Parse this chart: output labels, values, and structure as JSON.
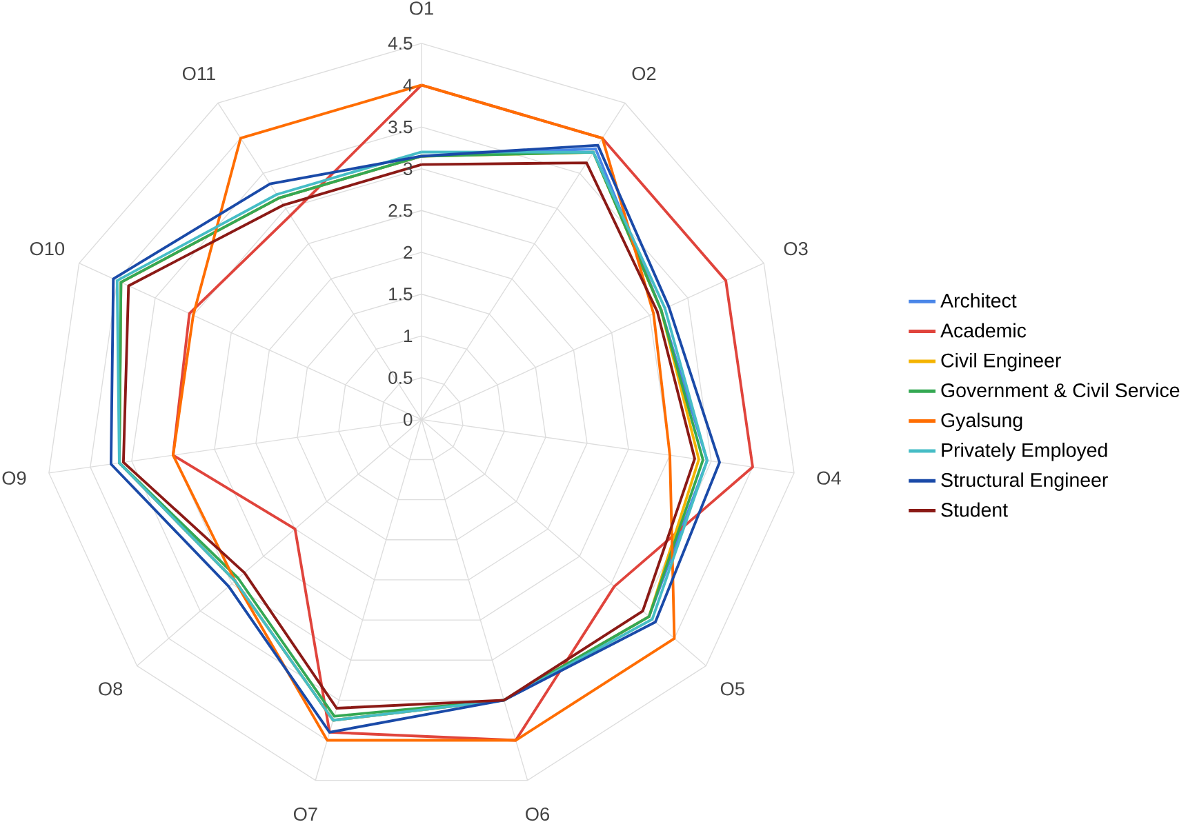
{
  "chart_data": {
    "type": "radar",
    "categories": [
      "O1",
      "O2",
      "O3",
      "O4",
      "O5",
      "O6",
      "O7",
      "O8",
      "O9",
      "O10",
      "O11"
    ],
    "ylim": [
      0,
      4.5
    ],
    "yticks": [
      0,
      0.5,
      1,
      1.5,
      2,
      2.5,
      3,
      3.5,
      4,
      4.5
    ],
    "grid": true,
    "legend": "right",
    "series": [
      {
        "name": "Architect",
        "color": "#4a86e8",
        "values": [
          3.15,
          3.85,
          3.15,
          3.45,
          3.6,
          3.5,
          3.75,
          2.95,
          3.65,
          3.95,
          3.15
        ]
      },
      {
        "name": "Academic",
        "color": "#e0443c",
        "values": [
          4.0,
          4.0,
          4.0,
          4.0,
          3.05,
          4.0,
          3.9,
          2.0,
          3.0,
          3.05,
          2.9
        ]
      },
      {
        "name": "Civil Engineer",
        "color": "#f4b400",
        "values": [
          3.15,
          3.8,
          3.15,
          3.35,
          3.6,
          3.5,
          3.75,
          2.95,
          3.65,
          3.95,
          3.15
        ]
      },
      {
        "name": "Government & Civil Service",
        "color": "#34a853",
        "values": [
          3.15,
          3.8,
          3.15,
          3.4,
          3.6,
          3.5,
          3.7,
          2.9,
          3.65,
          3.95,
          3.15
        ]
      },
      {
        "name": "Gyalsung",
        "color": "#ff6d01",
        "values": [
          4.0,
          4.0,
          3.05,
          3.0,
          4.0,
          4.0,
          4.0,
          2.95,
          3.0,
          3.0,
          4.0
        ]
      },
      {
        "name": "Privately Employed",
        "color": "#46bdc6",
        "values": [
          3.2,
          3.8,
          3.2,
          3.45,
          3.65,
          3.5,
          3.75,
          2.95,
          3.65,
          4.0,
          3.2
        ]
      },
      {
        "name": "Structural Engineer",
        "color": "#1a4aa8",
        "values": [
          3.15,
          3.9,
          3.25,
          3.6,
          3.7,
          3.5,
          3.9,
          3.05,
          3.75,
          4.05,
          3.35
        ]
      },
      {
        "name": "Student",
        "color": "#8b1a16",
        "values": [
          3.05,
          3.65,
          3.1,
          3.3,
          3.5,
          3.5,
          3.6,
          2.8,
          3.6,
          3.85,
          3.05
        ]
      }
    ]
  }
}
